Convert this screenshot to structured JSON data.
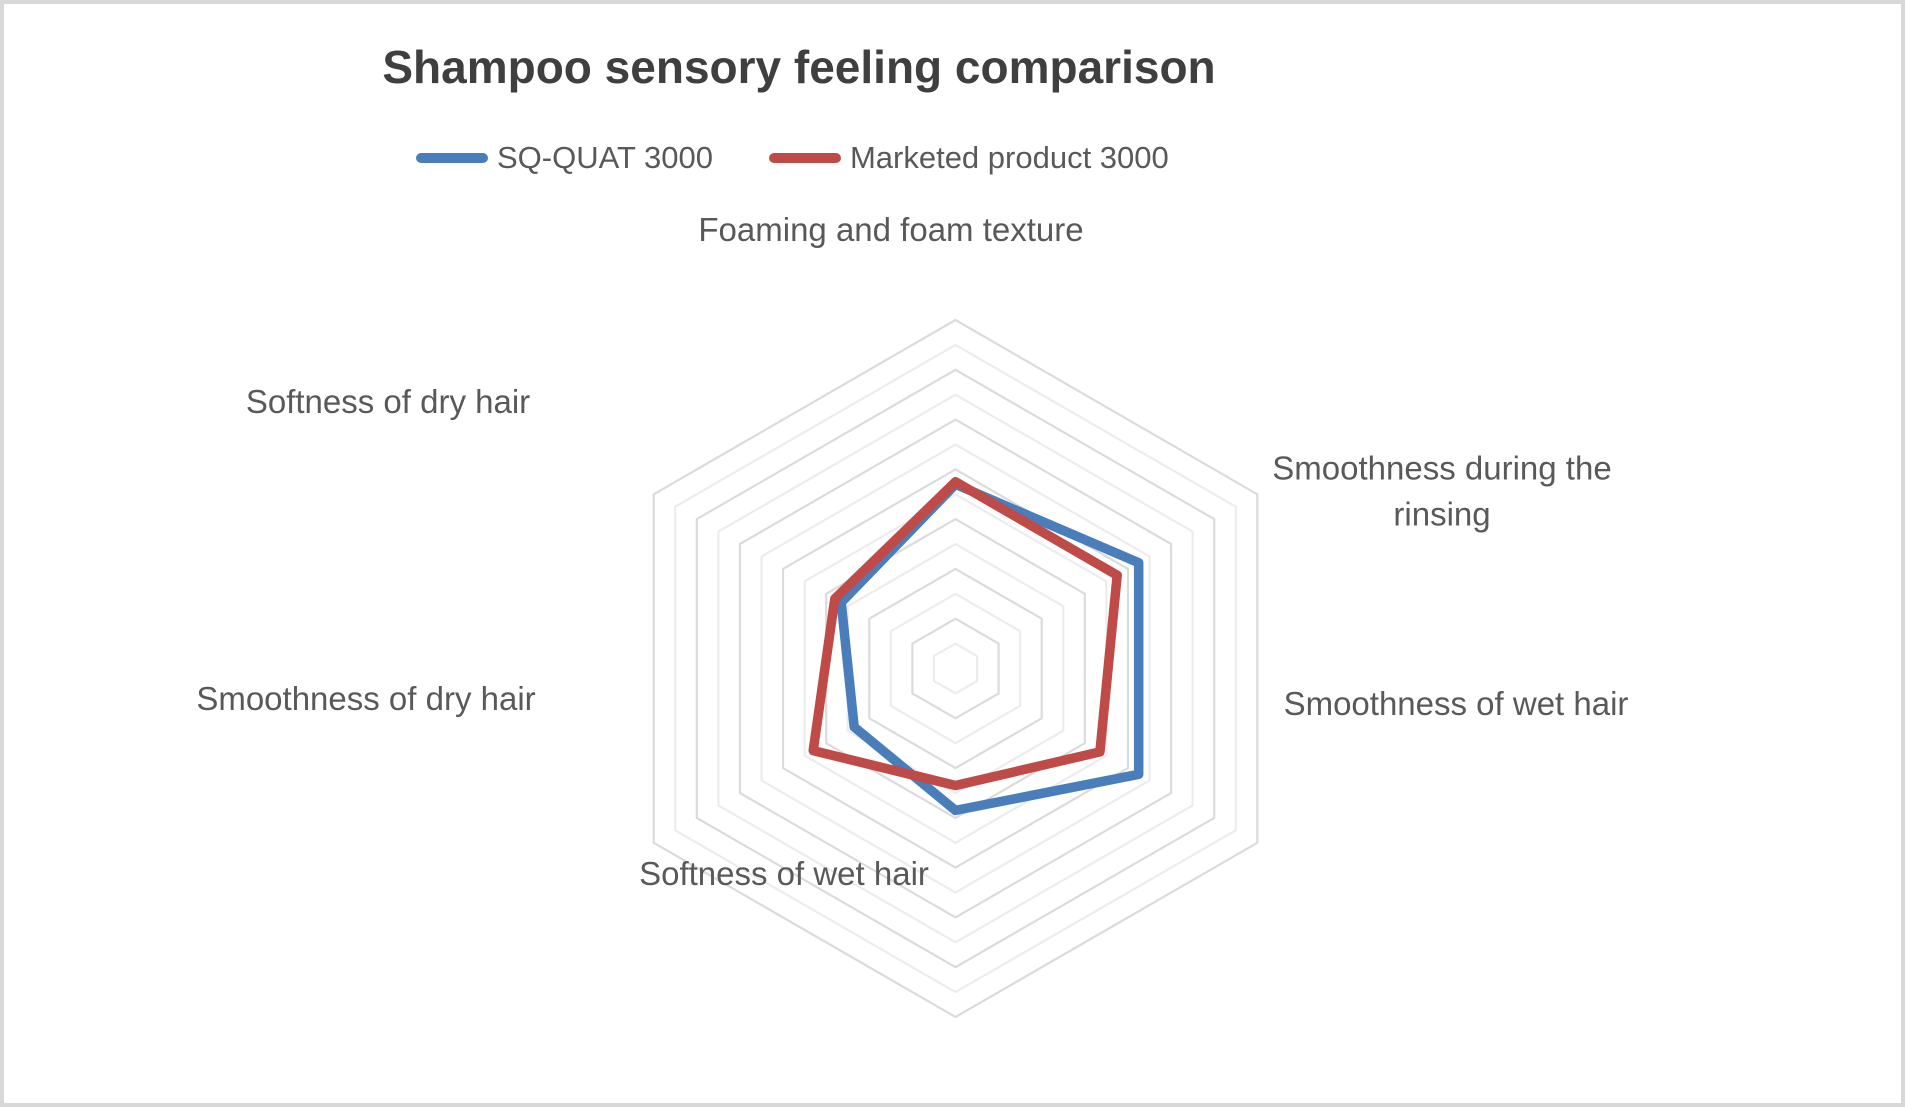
{
  "title": "Shampoo sensory feeling comparison",
  "legend": {
    "items": [
      {
        "label": "SQ-QUAT 3000",
        "color": "#4A7EBB"
      },
      {
        "label": "Marketed product 3000",
        "color": "#BE4B48"
      }
    ]
  },
  "chart_data": {
    "type": "radar",
    "title": "Shampoo sensory feeling comparison",
    "grid_shape": "hexagon",
    "axes": [
      "Foaming and foam texture",
      "Smoothness during the rinsing",
      "Smoothness of wet hair",
      "Softness of wet hair",
      "Smoothness of dry hair",
      "Softness of dry hair"
    ],
    "series": [
      {
        "name": "SQ-QUAT 3000",
        "color": "#4A7EBB",
        "values": [
          3.7,
          4.25,
          4.25,
          2.85,
          2.35,
          2.65
        ]
      },
      {
        "name": "Marketed product 3000",
        "color": "#BE4B48",
        "values": [
          3.75,
          3.75,
          3.35,
          2.35,
          3.3,
          2.8
        ]
      }
    ],
    "axis_range": [
      0,
      7
    ],
    "grid_step": 0.5,
    "grid_rings": 14,
    "tick_labels_visible": false,
    "radial_spokes_visible": false,
    "legend_position": "top",
    "gridline_colors": {
      "major": "#dbdbdb",
      "minor": "#ececec"
    },
    "series_stroke_width": 9.5,
    "background_color": "#ffffff",
    "frame_border_color": "#d8d8d8"
  }
}
